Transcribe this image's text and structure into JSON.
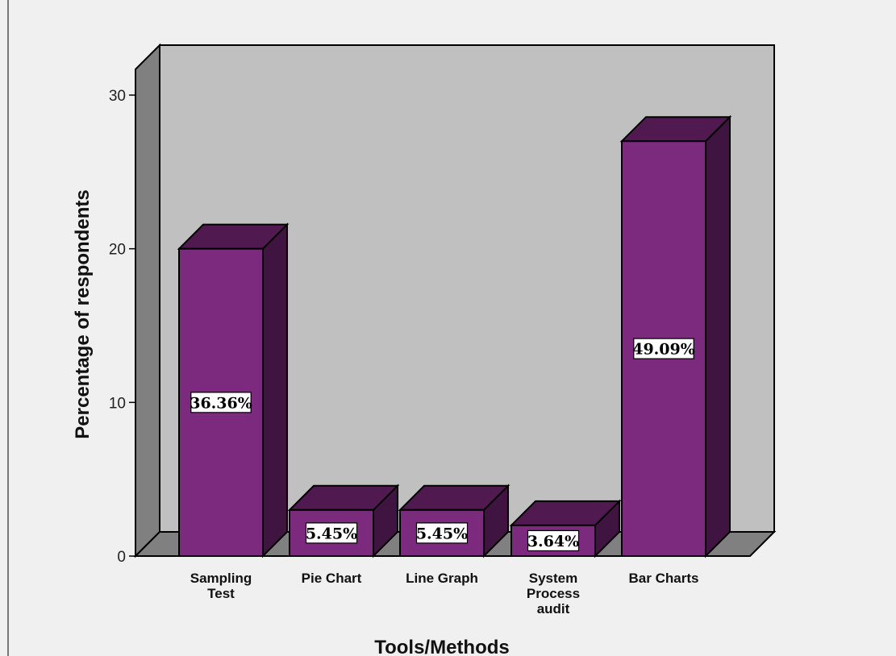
{
  "chart_data": {
    "type": "bar",
    "style": "3d",
    "categories": [
      [
        "Sampling",
        "Test"
      ],
      [
        "Pie Chart"
      ],
      [
        "Line Graph"
      ],
      [
        "System",
        "Process",
        "audit"
      ],
      [
        "Bar Charts"
      ]
    ],
    "values": [
      20,
      3,
      3,
      2,
      27
    ],
    "data_labels": [
      "36.36%",
      "5.45%",
      "5.45%",
      "3.64%",
      "49.09%"
    ],
    "xlabel": "Tools/Methods",
    "ylabel": "Percentage of respondents",
    "ylim": [
      0,
      30
    ],
    "yticks": [
      "0",
      "10",
      "20",
      "30"
    ],
    "grid": false,
    "legend": "none",
    "colors": {
      "bar_front": "#7b2a7d",
      "bar_top": "#501a50",
      "bar_side": "#401440",
      "wall": "#c0c0c0",
      "wall_side": "#808080",
      "floor": "#808080",
      "background": "#f0f0f0"
    }
  }
}
